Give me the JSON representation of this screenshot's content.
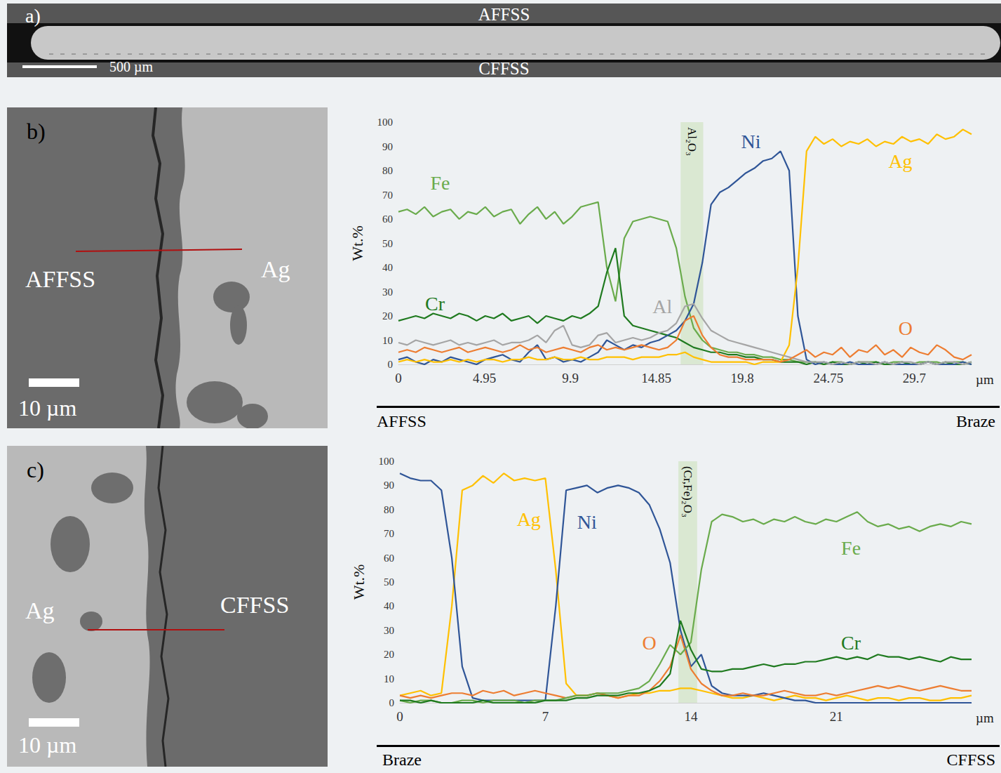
{
  "panels": {
    "a": {
      "label": "a)",
      "top_label": "AFFSS",
      "bottom_label": "CFFSS",
      "scale_bar": "500 µm"
    },
    "b": {
      "label": "b)",
      "left_label": "AFFSS",
      "right_label": "Ag",
      "scale_bar": "10 µm"
    },
    "c": {
      "label": "c)",
      "left_label": "Ag",
      "right_label": "CFFSS",
      "scale_bar": "10 µm"
    }
  },
  "chart_data": [
    {
      "type": "line",
      "y_label": "Wt.%",
      "x_label": "µm",
      "xlim": [
        0,
        33
      ],
      "xticks": [
        0,
        4.95,
        9.9,
        14.85,
        19.8,
        24.75,
        29.7
      ],
      "ylim": [
        0,
        100
      ],
      "yticks": [
        0,
        10,
        20,
        30,
        40,
        50,
        60,
        70,
        80,
        90,
        100
      ],
      "grid": false,
      "annotations": [
        {
          "text": "Al₂O₃",
          "x_range": [
            16.25,
            17.55
          ]
        }
      ],
      "direction": {
        "left": "AFFSS",
        "right": "Braze"
      },
      "x": [
        0,
        0.5,
        1,
        1.5,
        2,
        2.5,
        3,
        3.5,
        4,
        4.5,
        5,
        5.5,
        6,
        6.5,
        7,
        7.5,
        8,
        8.5,
        9,
        9.5,
        10,
        10.5,
        11,
        11.5,
        12,
        12.5,
        13,
        13.5,
        14,
        14.5,
        15,
        15.5,
        16,
        16.5,
        17,
        17.5,
        18,
        18.5,
        19,
        19.5,
        20,
        20.5,
        21,
        21.5,
        22,
        22.5,
        23,
        23.5,
        24,
        24.5,
        25,
        25.5,
        26,
        26.5,
        27,
        27.5,
        28,
        28.5,
        29,
        29.5,
        30,
        30.5,
        31,
        31.5,
        32,
        32.5,
        33
      ],
      "series": [
        {
          "name": "Fe",
          "color": "#6aab4c",
          "values": [
            63,
            64,
            62,
            65,
            61,
            63,
            64,
            60,
            63,
            62,
            65,
            61,
            63,
            64,
            58,
            62,
            65,
            60,
            63,
            58,
            61,
            65,
            66,
            67,
            40,
            26,
            52,
            59,
            60,
            61,
            60,
            59,
            48,
            28,
            15,
            10,
            7,
            6,
            5,
            5,
            4,
            4,
            3,
            3,
            2,
            2,
            1,
            1,
            1,
            0,
            1,
            1,
            0,
            1,
            1,
            1,
            0,
            1,
            1,
            0,
            1,
            1,
            1,
            0,
            1,
            1,
            0
          ]
        },
        {
          "name": "Cr",
          "color": "#1f7a1f",
          "values": [
            18,
            19,
            20,
            19,
            21,
            20,
            19,
            21,
            20,
            18,
            20,
            19,
            21,
            18,
            19,
            20,
            17,
            20,
            19,
            18,
            20,
            19,
            21,
            24,
            38,
            48,
            20,
            16,
            15,
            14,
            13,
            12,
            11,
            9,
            7,
            6,
            5,
            5,
            4,
            4,
            3,
            3,
            2,
            2,
            1,
            1,
            1,
            0,
            1,
            0,
            1,
            0,
            0,
            1,
            0,
            1,
            0,
            0,
            1,
            0,
            0,
            1,
            0,
            1,
            0,
            0,
            1
          ]
        },
        {
          "name": "Ni",
          "color": "#2f5597",
          "values": [
            2,
            3,
            1,
            0,
            2,
            1,
            3,
            2,
            1,
            0,
            2,
            3,
            4,
            2,
            1,
            5,
            8,
            2,
            3,
            1,
            2,
            1,
            3,
            5,
            10,
            8,
            6,
            8,
            7,
            9,
            10,
            12,
            14,
            18,
            25,
            42,
            66,
            71,
            73,
            76,
            79,
            81,
            84,
            85,
            88,
            80,
            20,
            2,
            0,
            1,
            0,
            0,
            1,
            0,
            0,
            0,
            1,
            0,
            0,
            0,
            0,
            1,
            0,
            0,
            0,
            1,
            0
          ]
        },
        {
          "name": "Ag",
          "color": "#ffc000",
          "values": [
            1,
            2,
            1,
            2,
            1,
            1,
            2,
            1,
            2,
            1,
            2,
            2,
            1,
            2,
            2,
            3,
            2,
            2,
            3,
            2,
            2,
            3,
            2,
            2,
            3,
            3,
            3,
            2,
            3,
            3,
            3,
            4,
            4,
            5,
            3,
            2,
            1,
            1,
            1,
            1,
            1,
            0,
            1,
            1,
            1,
            8,
            40,
            88,
            94,
            91,
            93,
            90,
            92,
            91,
            93,
            90,
            92,
            91,
            94,
            92,
            93,
            91,
            95,
            93,
            94,
            97,
            95
          ]
        },
        {
          "name": "Al",
          "color": "#a5a5a5",
          "values": [
            9,
            8,
            10,
            9,
            8,
            9,
            10,
            8,
            9,
            8,
            9,
            10,
            8,
            9,
            9,
            10,
            12,
            9,
            14,
            16,
            8,
            7,
            8,
            12,
            13,
            9,
            10,
            11,
            10,
            11,
            13,
            14,
            17,
            24,
            25,
            19,
            14,
            12,
            10,
            9,
            8,
            7,
            6,
            5,
            4,
            3,
            2,
            1,
            1,
            1,
            0,
            1,
            0,
            1,
            1,
            0,
            1,
            0,
            1,
            1,
            0,
            1,
            0,
            1,
            1,
            0,
            1
          ]
        },
        {
          "name": "O",
          "color": "#ed7d31",
          "values": [
            5,
            6,
            5,
            7,
            6,
            5,
            6,
            7,
            5,
            6,
            7,
            6,
            5,
            6,
            8,
            6,
            7,
            5,
            6,
            7,
            6,
            5,
            7,
            8,
            6,
            7,
            6,
            7,
            8,
            7,
            6,
            7,
            10,
            18,
            20,
            12,
            7,
            4,
            3,
            3,
            2,
            2,
            2,
            2,
            1,
            2,
            4,
            6,
            3,
            5,
            4,
            7,
            3,
            6,
            5,
            8,
            4,
            6,
            3,
            7,
            5,
            4,
            8,
            6,
            3,
            2,
            4
          ]
        }
      ]
    },
    {
      "type": "line",
      "y_label": "Wt.%",
      "x_label": "µm",
      "xlim": [
        0,
        27.5
      ],
      "xticks": [
        0,
        7,
        14,
        21
      ],
      "ylim": [
        0,
        100
      ],
      "yticks": [
        0,
        10,
        20,
        30,
        40,
        50,
        60,
        70,
        80,
        90,
        100
      ],
      "grid": false,
      "annotations": [
        {
          "text": "(Cr,Fe)₂O₃",
          "x_range": [
            13.4,
            14.3
          ]
        }
      ],
      "direction": {
        "left": "Braze",
        "right": "CFFSS"
      },
      "x": [
        0,
        0.5,
        1,
        1.5,
        2,
        2.5,
        3,
        3.5,
        4,
        4.5,
        5,
        5.5,
        6,
        6.5,
        7,
        7.5,
        8,
        8.5,
        9,
        9.5,
        10,
        10.5,
        11,
        11.5,
        12,
        12.5,
        13,
        13.5,
        14,
        14.5,
        15,
        15.5,
        16,
        16.5,
        17,
        17.5,
        18,
        18.5,
        19,
        19.5,
        20,
        20.5,
        21,
        21.5,
        22,
        22.5,
        23,
        23.5,
        24,
        24.5,
        25,
        25.5,
        26,
        26.5,
        27,
        27.5
      ],
      "series": [
        {
          "name": "Ag",
          "color": "#ffc000",
          "values": [
            3,
            4,
            5,
            3,
            4,
            40,
            88,
            90,
            94,
            91,
            95,
            92,
            93,
            92,
            93,
            55,
            8,
            3,
            3,
            4,
            3,
            2,
            3,
            4,
            4,
            5,
            5,
            6,
            6,
            5,
            4,
            3,
            2,
            2,
            3,
            2,
            1,
            2,
            3,
            2,
            2,
            1,
            2,
            3,
            2,
            1,
            2,
            2,
            1,
            2,
            2,
            1,
            1,
            2,
            2,
            3
          ]
        },
        {
          "name": "Ni",
          "color": "#2f5597",
          "values": [
            95,
            93,
            92,
            92,
            88,
            60,
            15,
            2,
            1,
            1,
            1,
            1,
            1,
            1,
            1,
            40,
            88,
            89,
            90,
            87,
            89,
            90,
            89,
            87,
            82,
            72,
            58,
            30,
            15,
            20,
            7,
            4,
            3,
            3,
            3,
            4,
            3,
            2,
            1,
            1,
            0,
            0,
            0,
            0,
            0,
            0,
            0,
            0,
            0,
            0,
            0,
            0,
            0,
            0,
            0,
            0
          ]
        },
        {
          "name": "O",
          "color": "#ed7d31",
          "values": [
            3,
            2,
            3,
            2,
            3,
            4,
            4,
            3,
            5,
            4,
            5,
            3,
            4,
            5,
            4,
            3,
            2,
            3,
            3,
            4,
            3,
            2,
            3,
            3,
            5,
            9,
            15,
            28,
            14,
            8,
            5,
            3,
            3,
            4,
            3,
            3,
            4,
            5,
            4,
            3,
            3,
            4,
            3,
            4,
            5,
            6,
            7,
            6,
            7,
            6,
            5,
            6,
            7,
            6,
            5,
            5
          ]
        },
        {
          "name": "Fe",
          "color": "#6aab4c",
          "values": [
            1,
            0,
            1,
            1,
            0,
            0,
            1,
            1,
            0,
            1,
            1,
            1,
            0,
            1,
            1,
            1,
            2,
            3,
            3,
            4,
            4,
            4,
            5,
            6,
            9,
            16,
            24,
            20,
            25,
            55,
            75,
            78,
            77,
            75,
            76,
            74,
            76,
            75,
            77,
            75,
            74,
            76,
            75,
            77,
            79,
            75,
            73,
            74,
            72,
            73,
            71,
            73,
            74,
            73,
            75,
            74
          ]
        },
        {
          "name": "Cr",
          "color": "#1f7a1f",
          "values": [
            1,
            1,
            0,
            1,
            0,
            0,
            0,
            0,
            1,
            0,
            0,
            0,
            0,
            0,
            1,
            1,
            1,
            2,
            2,
            3,
            3,
            3,
            4,
            4,
            5,
            7,
            12,
            34,
            22,
            14,
            13,
            13,
            14,
            14,
            15,
            16,
            15,
            16,
            16,
            17,
            17,
            18,
            19,
            18,
            19,
            18,
            20,
            19,
            19,
            18,
            19,
            18,
            17,
            19,
            18,
            18
          ]
        }
      ]
    }
  ]
}
